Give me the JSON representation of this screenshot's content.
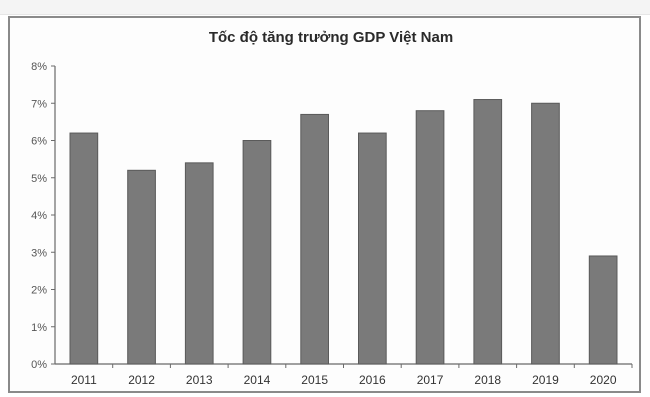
{
  "chart_data": {
    "type": "bar",
    "title": "Tốc độ tăng trưởng GDP Việt Nam",
    "xlabel": "",
    "ylabel": "",
    "categories": [
      "2011",
      "2012",
      "2013",
      "2014",
      "2015",
      "2016",
      "2017",
      "2018",
      "2019",
      "2020"
    ],
    "values": [
      6.2,
      5.2,
      5.4,
      6.0,
      6.7,
      6.2,
      6.8,
      7.1,
      7.0,
      2.9
    ],
    "y_ticks": [
      "0%",
      "1%",
      "2%",
      "3%",
      "4%",
      "5%",
      "6%",
      "7%",
      "8%"
    ],
    "ylim": [
      0,
      8
    ],
    "grid": false,
    "legend": "none",
    "colors": {
      "bar": "#7a7a7a",
      "bar_edge": "#5a5a5a",
      "axis": "#6a6a6a"
    }
  }
}
